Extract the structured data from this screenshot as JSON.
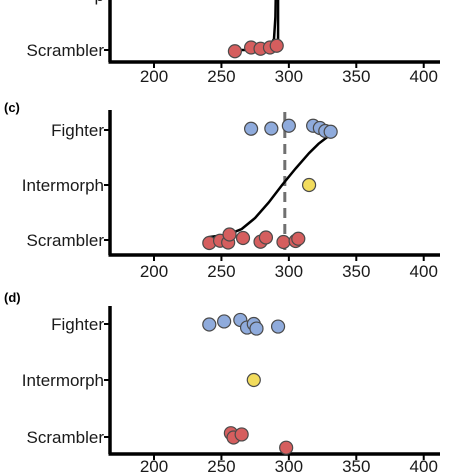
{
  "colors": {
    "fighter": "#8fabdc",
    "intermorph": "#f2dc5d",
    "scrambler": "#d55e5e",
    "point_stroke": "#4a4a4a",
    "axis": "#000000",
    "dashed": "#707070"
  },
  "chart_data": [
    {
      "type": "scatter",
      "panel": "",
      "xlim": [
        170,
        440
      ],
      "xticks": [
        "200",
        "250",
        "300",
        "350",
        "400"
      ],
      "categories": [
        "Intermorph",
        "Scrambler"
      ],
      "category_labels": [
        "p",
        "Scrambler"
      ],
      "series": [
        {
          "category": "Scrambler",
          "points": [
            {
              "x": 260,
              "y": -0.05
            },
            {
              "x": 272,
              "y": 0.1
            },
            {
              "x": 279,
              "y": 0.05
            },
            {
              "x": 286,
              "y": 0.1
            },
            {
              "x": 291,
              "y": 0.17
            }
          ]
        }
      ],
      "fit_curve": [
        [
          260,
          0.0
        ],
        [
          275,
          0.0
        ],
        [
          285,
          0.05
        ],
        [
          289,
          0.2
        ],
        [
          290,
          0.6
        ],
        [
          290.5,
          1.2
        ],
        [
          291,
          1.8
        ]
      ],
      "vline": {
        "x": 292,
        "style": "solid",
        "from": 0.05,
        "to": 1.7
      }
    },
    {
      "type": "scatter",
      "panel": "(c)",
      "xlim": [
        170,
        440
      ],
      "xticks": [
        "200",
        "250",
        "300",
        "350",
        "400"
      ],
      "categories": [
        "Fighter",
        "Intermorph",
        "Scrambler"
      ],
      "category_labels": [
        "Fighter",
        "Intermorph",
        "Scrambler"
      ],
      "series": [
        {
          "category": "Fighter",
          "points": [
            {
              "x": 272,
              "y": 0.05
            },
            {
              "x": 287,
              "y": 0.06
            },
            {
              "x": 300,
              "y": 0.17
            },
            {
              "x": 318,
              "y": 0.17
            },
            {
              "x": 323,
              "y": 0.08
            },
            {
              "x": 327,
              "y": -0.04
            },
            {
              "x": 331,
              "y": -0.07
            }
          ]
        },
        {
          "category": "Intermorph",
          "points": [
            {
              "x": 315,
              "y": 0.0
            }
          ]
        },
        {
          "category": "Scrambler",
          "points": [
            {
              "x": 241,
              "y": -0.12
            },
            {
              "x": 249,
              "y": -0.03
            },
            {
              "x": 255,
              "y": -0.1
            },
            {
              "x": 256,
              "y": 0.22
            },
            {
              "x": 266,
              "y": 0.08
            },
            {
              "x": 279,
              "y": -0.07
            },
            {
              "x": 283,
              "y": 0.1
            },
            {
              "x": 296,
              "y": -0.08
            },
            {
              "x": 305,
              "y": -0.04
            },
            {
              "x": 307,
              "y": 0.05
            }
          ]
        }
      ],
      "fit_curve": [
        [
          240,
          0.05
        ],
        [
          255,
          0.1
        ],
        [
          265,
          0.2
        ],
        [
          275,
          0.4
        ],
        [
          285,
          0.68
        ],
        [
          295,
          1.0
        ],
        [
          305,
          1.3
        ],
        [
          315,
          1.58
        ],
        [
          322,
          1.75
        ],
        [
          330,
          1.9
        ]
      ],
      "vline": {
        "x": 297,
        "style": "dashed",
        "from": -0.2,
        "to": 2.3
      }
    },
    {
      "type": "scatter",
      "panel": "(d)",
      "xlim": [
        170,
        440
      ],
      "xticks": [
        "200",
        "250",
        "300",
        "350",
        "400"
      ],
      "categories": [
        "Fighter",
        "Intermorph",
        "Scrambler"
      ],
      "category_labels": [
        "Fighter",
        "Intermorph",
        "Scrambler"
      ],
      "series": [
        {
          "category": "Fighter",
          "points": [
            {
              "x": 241,
              "y": -0.02
            },
            {
              "x": 252,
              "y": 0.1
            },
            {
              "x": 264,
              "y": 0.16
            },
            {
              "x": 269,
              "y": -0.14
            },
            {
              "x": 274,
              "y": 0.0
            },
            {
              "x": 276,
              "y": -0.18
            },
            {
              "x": 292,
              "y": -0.1
            }
          ]
        },
        {
          "category": "Intermorph",
          "points": [
            {
              "x": 274,
              "y": 0.0
            }
          ]
        },
        {
          "category": "Scrambler",
          "points": [
            {
              "x": 257,
              "y": 0.15
            },
            {
              "x": 259,
              "y": -0.02
            },
            {
              "x": 265,
              "y": 0.1
            },
            {
              "x": 298,
              "y": -0.42
            }
          ]
        }
      ]
    }
  ]
}
